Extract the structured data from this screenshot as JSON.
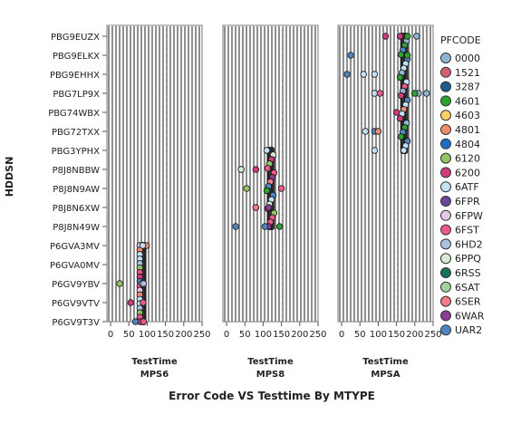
{
  "chart_data": {
    "type": "scatter",
    "title": "Error Code VS Testtime By MTYPE",
    "ylabel": "HDDSN",
    "xlim": [
      -10,
      250
    ],
    "x_ticks": [
      0,
      50,
      100,
      150,
      200,
      250
    ],
    "reference_lines_x": [
      0,
      150
    ],
    "y_categories": [
      "PBG9EUZX",
      "PBG9ELKX",
      "PBG9EHHX",
      "PBG7LP9X",
      "PBG74WBX",
      "PBG72TXX",
      "PBG3YPHX",
      "P8J8NBBW",
      "P8J8N9AW",
      "P8J8N6XW",
      "P8J8N49W",
      "P6GVA3MV",
      "P6GVA0MV",
      "P6GV9YBV",
      "P6GV9VTV",
      "P6GV9T3V"
    ],
    "legend": {
      "title": "PFCODE",
      "placement": "right",
      "entries": [
        {
          "code": "0000",
          "color": "#8fb7d3"
        },
        {
          "code": "1521",
          "color": "#d0616f"
        },
        {
          "code": "3287",
          "color": "#1b5c8f"
        },
        {
          "code": "4601",
          "color": "#2ea134"
        },
        {
          "code": "4603",
          "color": "#fbd067"
        },
        {
          "code": "4801",
          "color": "#f08d6d"
        },
        {
          "code": "4804",
          "color": "#1d6fc6"
        },
        {
          "code": "6120",
          "color": "#93c566"
        },
        {
          "code": "6200",
          "color": "#cf3b7c"
        },
        {
          "code": "6ATF",
          "color": "#c4e2f5"
        },
        {
          "code": "6FPR",
          "color": "#6b4697"
        },
        {
          "code": "6FPW",
          "color": "#e6c7e8"
        },
        {
          "code": "6FST",
          "color": "#ec5a8c"
        },
        {
          "code": "6HD2",
          "color": "#adc2e2"
        },
        {
          "code": "6PPQ",
          "color": "#d5ecd0"
        },
        {
          "code": "6RSS",
          "color": "#16725b"
        },
        {
          "code": "6SAT",
          "color": "#a1d49c"
        },
        {
          "code": "6SER",
          "color": "#f47b8d"
        },
        {
          "code": "6WAR",
          "color": "#8a3d91"
        },
        {
          "code": "UAR2",
          "color": "#4f86c2"
        }
      ]
    },
    "panels": [
      {
        "xlabel": "TestTime",
        "mtype": "MPS6",
        "points": [
          {
            "x": 90,
            "y": "P6GVA3MV",
            "code": "6FPW"
          },
          {
            "x": 98,
            "y": "P6GVA3MV",
            "code": "4801"
          },
          {
            "x": 88,
            "y": "P6GVA3MV",
            "code": "6ATF"
          },
          {
            "x": 86,
            "y": "P6GV9YBV",
            "code": "6ATF"
          },
          {
            "x": 90,
            "y": "P6GV9YBV",
            "code": "6HD2"
          },
          {
            "x": 25,
            "y": "P6GV9YBV",
            "code": "6120"
          },
          {
            "x": 89,
            "y": "P6GV9VTV",
            "code": "6FST"
          },
          {
            "x": 55,
            "y": "P6GV9VTV",
            "code": "6200"
          },
          {
            "x": 68,
            "y": "P6GV9T3V",
            "code": "UAR2"
          },
          {
            "x": 90,
            "y": "P6GV9T3V",
            "code": "6FST"
          }
        ],
        "dense_bands": [
          {
            "x_min": 80,
            "x_max": 98,
            "y_from": "P6GVA3MV",
            "y_to": "P6GV9T3V"
          }
        ]
      },
      {
        "xlabel": "TestTime",
        "mtype": "MPS8",
        "points": [
          {
            "x": 40,
            "y": "P8J8NBBW",
            "code": "6ATF"
          },
          {
            "x": 40,
            "y": "P8J8NBBW",
            "code": "6PPQ"
          },
          {
            "x": 80,
            "y": "P8J8NBBW",
            "code": "6200"
          },
          {
            "x": 55,
            "y": "P8J8N9AW",
            "code": "6120"
          },
          {
            "x": 150,
            "y": "P8J8N9AW",
            "code": "6FST"
          },
          {
            "x": 80,
            "y": "P8J8N6XW",
            "code": "6FST"
          },
          {
            "x": 115,
            "y": "P8J8N6XW",
            "code": "6WAR"
          },
          {
            "x": 80,
            "y": "P8J8N6XW",
            "code": "6SER"
          },
          {
            "x": 25,
            "y": "P8J8N49W",
            "code": "UAR2"
          },
          {
            "x": 145,
            "y": "P8J8N49W",
            "code": "4601"
          },
          {
            "x": 105,
            "y": "P8J8N49W",
            "code": "UAR2"
          }
        ],
        "dense_bands": [
          {
            "x_min": 110,
            "x_max": 132,
            "y_from": "PBG3YPHX",
            "y_to": "P8J8N49W"
          }
        ]
      },
      {
        "xlabel": "TestTime",
        "mtype": "MPSA",
        "points": [
          {
            "x": 120,
            "y": "PBG9EUZX",
            "code": "6200"
          },
          {
            "x": 205,
            "y": "PBG9EUZX",
            "code": "0000"
          },
          {
            "x": 180,
            "y": "PBG9EUZX",
            "code": "4601"
          },
          {
            "x": 25,
            "y": "PBG9ELKX",
            "code": "UAR2"
          },
          {
            "x": 180,
            "y": "PBG9ELKX",
            "code": "4601"
          },
          {
            "x": 15,
            "y": "PBG9EHHX",
            "code": "UAR2"
          },
          {
            "x": 90,
            "y": "PBG9EHHX",
            "code": "6ATF"
          },
          {
            "x": 60,
            "y": "PBG9EHHX",
            "code": "6ATF"
          },
          {
            "x": 210,
            "y": "PBG7LP9X",
            "code": "0000"
          },
          {
            "x": 200,
            "y": "PBG7LP9X",
            "code": "4601"
          },
          {
            "x": 90,
            "y": "PBG7LP9X",
            "code": "6ATF"
          },
          {
            "x": 105,
            "y": "PBG7LP9X",
            "code": "6FST"
          },
          {
            "x": 232,
            "y": "PBG7LP9X",
            "code": "0000"
          },
          {
            "x": 150,
            "y": "PBG74WBX",
            "code": "6200"
          },
          {
            "x": 90,
            "y": "PBG72TXX",
            "code": "UAR2"
          },
          {
            "x": 65,
            "y": "PBG72TXX",
            "code": "6ATF"
          },
          {
            "x": 100,
            "y": "PBG72TXX",
            "code": "4801"
          },
          {
            "x": 90,
            "y": "PBG3YPHX",
            "code": "6ATF"
          }
        ],
        "dense_bands": [
          {
            "x_min": 160,
            "x_max": 182,
            "y_from": "PBG9EUZX",
            "y_to": "PBG3YPHX"
          }
        ]
      }
    ]
  }
}
